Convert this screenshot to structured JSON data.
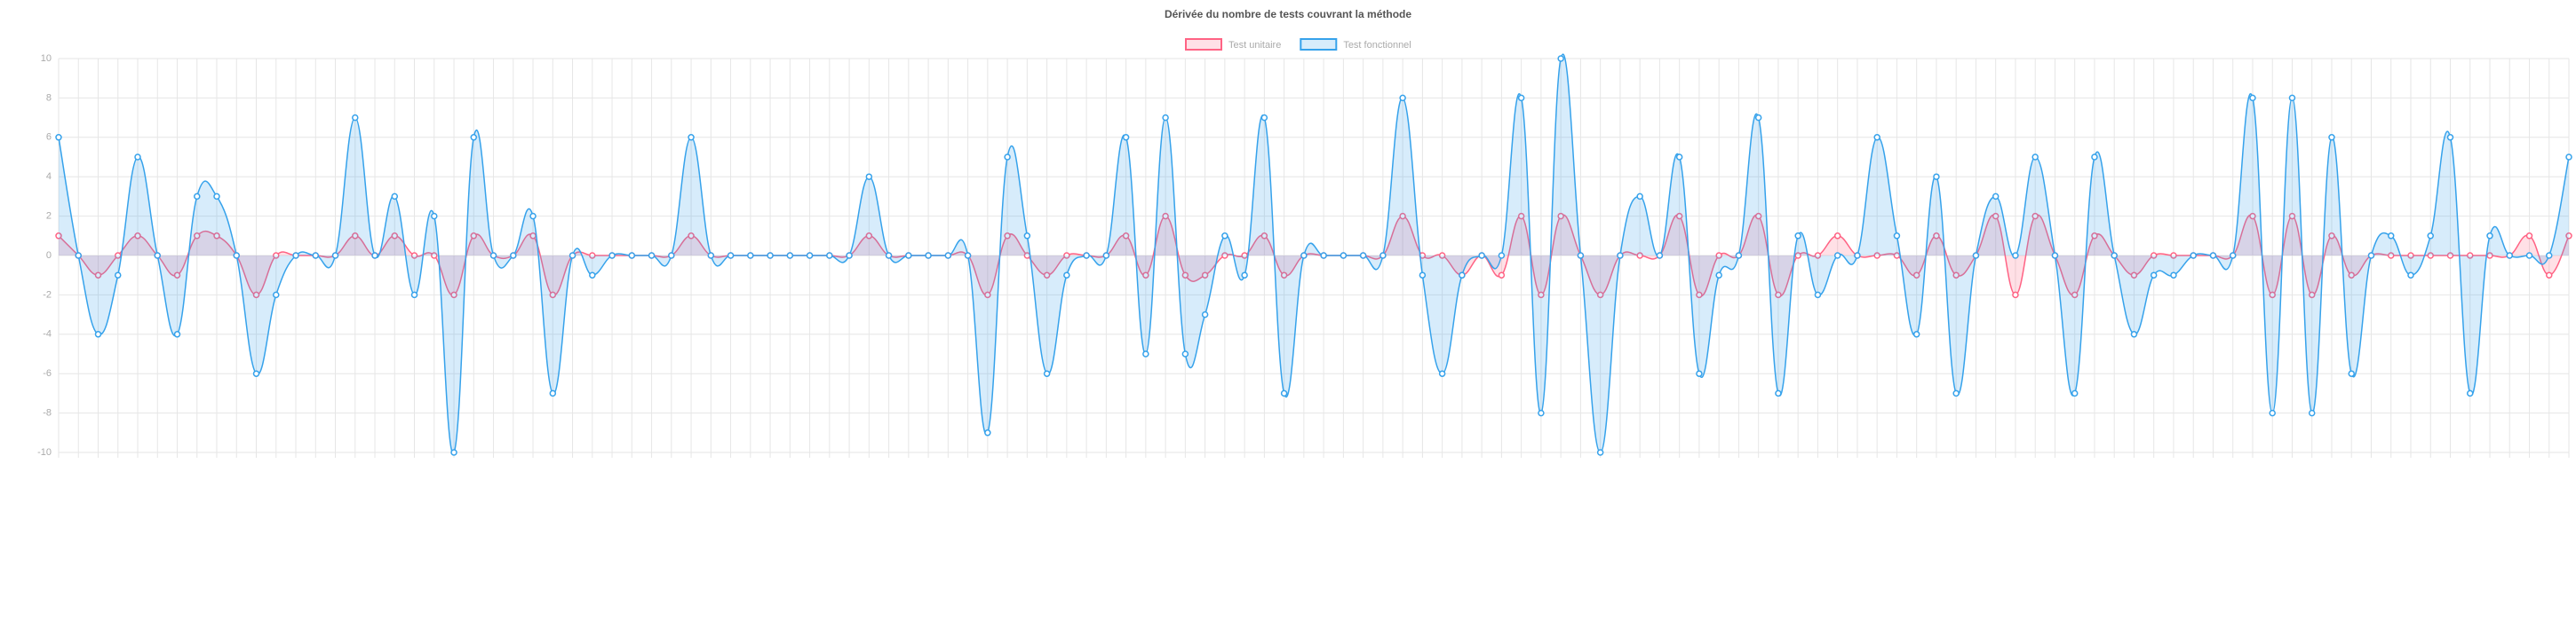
{
  "chart_data": {
    "type": "line",
    "title": "Dérivée du nombre de tests couvrant la méthode",
    "categories": [
      null,
      null,
      null,
      null,
      null,
      null,
      null,
      null,
      null,
      null,
      null,
      null,
      null,
      null,
      null,
      null,
      null,
      null,
      null,
      null,
      null,
      null,
      null,
      null,
      null,
      null,
      null,
      null,
      null,
      null,
      null,
      null,
      null,
      null,
      null,
      null,
      null,
      null,
      null,
      null,
      null,
      null,
      null,
      null,
      null,
      null,
      null,
      null,
      null,
      null,
      null,
      null,
      null,
      null,
      null,
      null,
      null,
      null,
      null,
      null,
      null,
      null,
      null,
      null,
      null,
      null,
      null,
      null,
      null,
      null,
      null,
      null,
      null,
      null,
      null,
      null,
      null,
      null,
      null,
      null,
      null,
      null,
      null,
      null,
      null,
      null,
      null,
      null,
      null,
      null,
      null,
      null,
      null,
      null,
      null,
      null,
      null,
      null,
      null,
      null,
      null,
      null,
      null,
      null,
      null,
      null,
      null,
      null,
      null,
      null,
      null,
      null,
      null,
      null,
      null,
      null,
      null,
      null,
      null,
      null,
      null,
      null,
      null,
      null,
      null,
      null,
      null,
      null
    ],
    "series": [
      {
        "name": "Test unitaire",
        "color": "#ff6384",
        "fill": "rgba(255,99,132,0.2)",
        "values": [
          1,
          0,
          -1,
          0,
          1,
          0,
          -1,
          1,
          1,
          0,
          -2,
          0,
          0,
          0,
          0,
          1,
          0,
          1,
          0,
          0,
          -2,
          1,
          0,
          0,
          1,
          -2,
          0,
          0,
          0,
          0,
          0,
          0,
          1,
          0,
          0,
          0,
          0,
          0,
          0,
          0,
          0,
          1,
          0,
          0,
          0,
          0,
          0,
          -2,
          1,
          0,
          -1,
          0,
          0,
          0,
          1,
          -1,
          2,
          -1,
          -1,
          0,
          0,
          1,
          -1,
          0,
          0,
          0,
          0,
          0,
          2,
          0,
          0,
          -1,
          0,
          -1,
          2,
          -2,
          2,
          0,
          -2,
          0,
          0,
          0,
          2,
          -2,
          0,
          0,
          2,
          -2,
          0,
          0,
          1,
          0,
          0,
          0,
          -1,
          1,
          -1,
          0,
          2,
          -2,
          2,
          0,
          -2,
          1,
          0,
          -1,
          0,
          0,
          0,
          0,
          0,
          2,
          -2,
          2,
          -2,
          1,
          -1,
          0,
          0,
          0,
          0,
          0,
          0,
          0,
          0,
          1,
          -1,
          1
        ]
      },
      {
        "name": "Test fonctionnel",
        "color": "#36a2eb",
        "fill": "rgba(54,162,235,0.2)",
        "values": [
          6,
          0,
          -4,
          -1,
          5,
          0,
          -4,
          3,
          3,
          0,
          -6,
          -2,
          0,
          0,
          0,
          7,
          0,
          3,
          -2,
          2,
          -10,
          6,
          0,
          0,
          2,
          -7,
          0,
          -1,
          0,
          0,
          0,
          0,
          6,
          0,
          0,
          0,
          0,
          0,
          0,
          0,
          0,
          4,
          0,
          0,
          0,
          0,
          0,
          -9,
          5,
          1,
          -6,
          -1,
          0,
          0,
          6,
          -5,
          7,
          -5,
          -3,
          1,
          -1,
          7,
          -7,
          0,
          0,
          0,
          0,
          0,
          8,
          -1,
          -6,
          -1,
          0,
          0,
          8,
          -8,
          10,
          0,
          -10,
          0,
          3,
          0,
          5,
          -6,
          -1,
          0,
          7,
          -7,
          1,
          -2,
          0,
          0,
          6,
          1,
          -4,
          4,
          -7,
          0,
          3,
          0,
          5,
          0,
          -7,
          5,
          0,
          -4,
          -1,
          -1,
          0,
          0,
          0,
          8,
          -8,
          8,
          -8,
          6,
          -6,
          0,
          1,
          -1,
          1,
          6,
          -7,
          1,
          0,
          0,
          0,
          5
        ]
      }
    ],
    "ylim": [
      -10,
      10
    ],
    "yticks": [
      -10,
      -8,
      -6,
      -4,
      -2,
      0,
      2,
      4,
      6,
      8,
      10
    ],
    "grid": true
  }
}
